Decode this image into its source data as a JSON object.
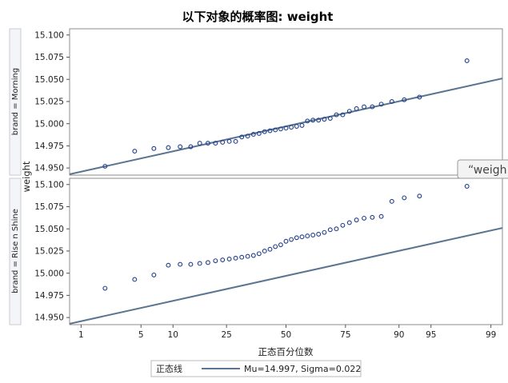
{
  "chart_data": {
    "type": "scatter",
    "title": "以下对象的概率图: weight",
    "xlabel": "正态百分位数",
    "ylabel": "weight",
    "x_ticks": [
      1,
      5,
      10,
      25,
      50,
      75,
      90,
      95,
      99
    ],
    "x_scale": "probit",
    "x_range": [
      0.7,
      99.3
    ],
    "y_ticks": [
      "15.100",
      "15.075",
      "15.050",
      "15.025",
      "15.000",
      "14.975",
      "14.950"
    ],
    "grid": false,
    "legend": {
      "title": "正态线",
      "entry": "Mu=14.997, Sigma=0.022",
      "placement": "bottom-center"
    },
    "normal_line": {
      "mu": 14.997,
      "sigma": 0.022,
      "color": "#5b7590"
    },
    "point_color": "#1f3d8a",
    "panels": [
      {
        "label": "brand = Morning",
        "ylim": [
          14.942,
          15.107
        ],
        "points": [
          [
            2.0,
            14.952
          ],
          [
            4.3,
            14.969
          ],
          [
            6.7,
            14.972
          ],
          [
            9.1,
            14.973
          ],
          [
            11.5,
            14.974
          ],
          [
            14.0,
            14.974
          ],
          [
            16.4,
            14.978
          ],
          [
            18.8,
            14.978
          ],
          [
            21.2,
            14.978
          ],
          [
            23.6,
            14.979
          ],
          [
            26.0,
            14.98
          ],
          [
            28.4,
            14.98
          ],
          [
            30.8,
            14.985
          ],
          [
            33.2,
            14.986
          ],
          [
            35.6,
            14.988
          ],
          [
            38.0,
            14.989
          ],
          [
            40.4,
            14.991
          ],
          [
            42.8,
            14.992
          ],
          [
            45.2,
            14.993
          ],
          [
            47.6,
            14.994
          ],
          [
            50.0,
            14.995
          ],
          [
            52.4,
            14.996
          ],
          [
            54.8,
            14.997
          ],
          [
            57.2,
            14.998
          ],
          [
            59.6,
            15.003
          ],
          [
            62.0,
            15.004
          ],
          [
            64.4,
            15.004
          ],
          [
            66.8,
            15.005
          ],
          [
            69.2,
            15.006
          ],
          [
            71.6,
            15.01
          ],
          [
            74.0,
            15.01
          ],
          [
            76.4,
            15.014
          ],
          [
            78.8,
            15.017
          ],
          [
            81.2,
            15.019
          ],
          [
            83.6,
            15.019
          ],
          [
            86.0,
            15.022
          ],
          [
            88.5,
            15.025
          ],
          [
            91.0,
            15.027
          ],
          [
            93.5,
            15.03
          ],
          [
            98.0,
            15.071
          ]
        ]
      },
      {
        "label": "brand = Rise n Shine",
        "ylim": [
          14.942,
          15.107
        ],
        "points": [
          [
            2.0,
            14.983
          ],
          [
            4.3,
            14.993
          ],
          [
            6.7,
            14.998
          ],
          [
            9.1,
            15.009
          ],
          [
            11.5,
            15.01
          ],
          [
            14.0,
            15.01
          ],
          [
            16.4,
            15.011
          ],
          [
            18.8,
            15.012
          ],
          [
            21.2,
            15.014
          ],
          [
            23.6,
            15.015
          ],
          [
            26.0,
            15.016
          ],
          [
            28.4,
            15.017
          ],
          [
            30.8,
            15.018
          ],
          [
            33.2,
            15.019
          ],
          [
            35.6,
            15.02
          ],
          [
            38.0,
            15.022
          ],
          [
            40.4,
            15.025
          ],
          [
            42.8,
            15.027
          ],
          [
            45.2,
            15.03
          ],
          [
            47.6,
            15.032
          ],
          [
            50.0,
            15.036
          ],
          [
            52.4,
            15.038
          ],
          [
            54.8,
            15.04
          ],
          [
            57.2,
            15.041
          ],
          [
            59.6,
            15.042
          ],
          [
            62.0,
            15.043
          ],
          [
            64.4,
            15.044
          ],
          [
            66.8,
            15.046
          ],
          [
            69.2,
            15.049
          ],
          [
            71.6,
            15.05
          ],
          [
            74.0,
            15.054
          ],
          [
            76.4,
            15.057
          ],
          [
            78.8,
            15.06
          ],
          [
            81.2,
            15.062
          ],
          [
            83.6,
            15.063
          ],
          [
            86.0,
            15.064
          ],
          [
            88.5,
            15.081
          ],
          [
            91.0,
            15.085
          ],
          [
            93.5,
            15.087
          ],
          [
            98.0,
            15.098
          ]
        ]
      }
    ]
  },
  "overlay": {
    "tooltip_text": "“weigh"
  }
}
